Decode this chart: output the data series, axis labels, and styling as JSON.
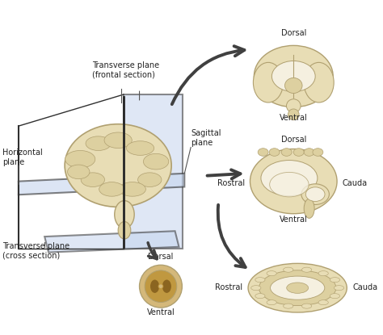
{
  "bg_color": "#ffffff",
  "plane_color": "#c5d5ee",
  "plane_alpha": 0.6,
  "brain_color": "#e8ddb5",
  "brain_color2": "#ddd0a0",
  "brain_edge_color": "#b0a070",
  "brain_inner_color": "#f5f0e0",
  "arrow_color": "#404040",
  "text_color": "#222222",
  "figsize": [
    4.74,
    4.15
  ],
  "dpi": 100,
  "labels": {
    "transverse_frontal": "Transverse plane\n(frontal section)",
    "horizontal": "Horizontal\nplane",
    "sagittal": "Sagittal\nplane",
    "transverse_cross": "Transverse plane\n(cross section)",
    "dorsal_top": "Dorsal",
    "ventral_top": "Ventral",
    "dorsal_mid": "Dorsal",
    "ventral_mid": "Ventral",
    "rostral_mid": "Rostral",
    "cauda_mid": "Cauda",
    "dorsal_bot": "Dorsal",
    "ventral_bot": "Ventral",
    "rostral_bot": "Rostral",
    "cauda_bot": "Cauda"
  }
}
